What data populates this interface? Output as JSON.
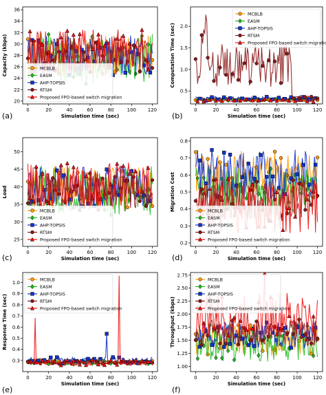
{
  "colors": {
    "MCBLB": "#ff9900",
    "EASM": "#22bb22",
    "AHP-TOPSIS": "#1133cc",
    "RTSM": "#8b1a1a",
    "Proposed": "#ee1111"
  },
  "chart_data": [
    {
      "type": "line",
      "panel_label": "(a)",
      "xlabel": "Simulation time (sec)",
      "ylabel": "Capacity (kbps)",
      "xlim": [
        -5,
        125
      ],
      "ylim": [
        19.5,
        36.5
      ],
      "xticks": [
        0,
        20,
        40,
        60,
        80,
        100,
        120
      ],
      "yticks": [
        20,
        22,
        24,
        26,
        28,
        30,
        32,
        34,
        36
      ],
      "legend_loc": "bottom-left",
      "series": [
        {
          "name": "MCBLB",
          "key": "MCBLB",
          "marker": "circle",
          "base": 28,
          "amp": 3.5,
          "seed": 11
        },
        {
          "name": "EASM",
          "key": "EASM",
          "marker": "diamond",
          "base": 27.5,
          "amp": 4.5,
          "seed": 12
        },
        {
          "name": "AHP-TOPSIS",
          "key": "AHP-TOPSIS",
          "marker": "square",
          "base": 28,
          "amp": 3.5,
          "seed": 13
        },
        {
          "name": "RTSM",
          "key": "RTSM",
          "marker": "circle",
          "base": 28,
          "amp": 3,
          "seed": 14
        },
        {
          "name": "Proposed FPO-based switch migration",
          "key": "Proposed",
          "marker": "triangle",
          "base": 28.5,
          "amp": 4,
          "seed": 15
        }
      ]
    },
    {
      "type": "line",
      "panel_label": "(b)",
      "xlabel": "Simulation time (sec)",
      "ylabel": "Computation Time (sec)",
      "xlim": [
        -5,
        125
      ],
      "ylim": [
        0.2,
        2.45
      ],
      "xticks": [
        0,
        20,
        40,
        60,
        80,
        100,
        120
      ],
      "yticks": [
        0.5,
        1.0,
        1.5,
        2.0
      ],
      "legend_loc": "top-right",
      "series": [
        {
          "name": "MCBLB",
          "key": "MCBLB",
          "marker": "circle",
          "base": 0.3,
          "amp": 0.02,
          "seed": 21
        },
        {
          "name": "EASM",
          "key": "EASM",
          "marker": "diamond",
          "base": 0.3,
          "amp": 0.02,
          "seed": 22
        },
        {
          "name": "AHP-TOPSIS",
          "key": "AHP-TOPSIS",
          "marker": "square",
          "base": 0.32,
          "amp": 0.05,
          "seed": 23
        },
        {
          "name": "RTSM",
          "key": "RTSM",
          "marker": "circle",
          "shape": "rtsm",
          "base": 0.3,
          "amp": 0.02,
          "seed": 24
        },
        {
          "name": "Proposed FPO-based switch migration",
          "key": "Proposed",
          "marker": "triangle",
          "base": 0.28,
          "amp": 0.03,
          "seed": 25
        }
      ]
    },
    {
      "type": "line",
      "panel_label": "(c)",
      "xlabel": "Simulation time (sec)",
      "ylabel": "Load",
      "xlim": [
        -5,
        125
      ],
      "ylim": [
        23,
        54
      ],
      "xticks": [
        0,
        20,
        40,
        60,
        80,
        100,
        120
      ],
      "yticks": [
        25,
        30,
        35,
        40,
        45,
        50
      ],
      "legend_loc": "bottom-left",
      "series": [
        {
          "name": "MCBLB",
          "key": "MCBLB",
          "marker": "circle",
          "base": 40,
          "amp": 6,
          "seed": 31
        },
        {
          "name": "EASM",
          "key": "EASM",
          "marker": "diamond",
          "base": 39,
          "amp": 7,
          "seed": 32
        },
        {
          "name": "AHP-TOPSIS",
          "key": "AHP-TOPSIS",
          "marker": "square",
          "base": 40,
          "amp": 6,
          "seed": 33
        },
        {
          "name": "RTSM",
          "key": "RTSM",
          "marker": "circle",
          "base": 39,
          "amp": 5,
          "seed": 34
        },
        {
          "name": "Proposed FPO-based switch migration",
          "key": "Proposed",
          "marker": "triangle",
          "base": 40,
          "amp": 7,
          "seed": 35
        }
      ]
    },
    {
      "type": "line",
      "panel_label": "(d)",
      "xlabel": "Simulation time (sec)",
      "ylabel": "Migration Cost",
      "xlim": [
        -5,
        125
      ],
      "ylim": [
        0.18,
        0.82
      ],
      "xticks": [
        0,
        20,
        40,
        60,
        80,
        100,
        120
      ],
      "yticks": [
        0.2,
        0.3,
        0.4,
        0.5,
        0.6,
        0.7,
        0.8
      ],
      "legend_loc": "bottom-left",
      "series": [
        {
          "name": "MCBLB",
          "key": "MCBLB",
          "marker": "circle",
          "base": 0.6,
          "amp": 0.14,
          "seed": 41
        },
        {
          "name": "EASM",
          "key": "EASM",
          "marker": "diamond",
          "base": 0.5,
          "amp": 0.15,
          "seed": 42
        },
        {
          "name": "AHP-TOPSIS",
          "key": "AHP-TOPSIS",
          "marker": "square",
          "base": 0.6,
          "amp": 0.15,
          "seed": 43
        },
        {
          "name": "RTSM",
          "key": "RTSM",
          "marker": "circle",
          "base": 0.45,
          "amp": 0.12,
          "seed": 44
        },
        {
          "name": "Proposed FPO-based switch migration",
          "key": "Proposed",
          "marker": "triangle",
          "base": 0.42,
          "amp": 0.16,
          "seed": 45
        }
      ]
    },
    {
      "type": "line",
      "panel_label": "(e)",
      "xlabel": "Simulation time (sec)",
      "ylabel": "Response Time (sec)",
      "xlim": [
        -5,
        125
      ],
      "ylim": [
        0.2,
        1.09
      ],
      "xticks": [
        0,
        20,
        40,
        60,
        80,
        100,
        120
      ],
      "yticks": [
        0.3,
        0.4,
        0.5,
        0.6,
        0.7,
        0.8,
        0.9,
        1.0
      ],
      "legend_loc": "top-left",
      "series": [
        {
          "name": "MCBLB",
          "key": "MCBLB",
          "marker": "circle",
          "base": 0.29,
          "amp": 0.015,
          "seed": 51
        },
        {
          "name": "EASM",
          "key": "EASM",
          "marker": "diamond",
          "base": 0.28,
          "amp": 0.02,
          "seed": 52
        },
        {
          "name": "AHP-TOPSIS",
          "key": "AHP-TOPSIS",
          "marker": "square",
          "base": 0.3,
          "amp": 0.03,
          "seed": 53
        },
        {
          "name": "RTSM",
          "key": "RTSM",
          "marker": "circle",
          "base": 0.28,
          "amp": 0.015,
          "seed": 54
        },
        {
          "name": "Proposed FPO-based switch migration",
          "key": "Proposed",
          "marker": "triangle",
          "base": 0.28,
          "amp": 0.025,
          "seed": 55
        }
      ]
    },
    {
      "type": "line",
      "panel_label": "(f)",
      "xlabel": "Simulation time (sec)",
      "ylabel": "Throughput (kbps)",
      "xlim": [
        -5,
        125
      ],
      "ylim": [
        0.9,
        2.8
      ],
      "xticks": [
        0,
        20,
        40,
        60,
        80,
        100,
        120
      ],
      "yticks": [
        1.0,
        1.25,
        1.5,
        1.75,
        2.0,
        2.25,
        2.5,
        2.75
      ],
      "legend_loc": "top-left",
      "series": [
        {
          "name": "MCBLB",
          "key": "MCBLB",
          "marker": "circle",
          "base": 1.5,
          "amp": 0.3,
          "seed": 61
        },
        {
          "name": "EASM",
          "key": "EASM",
          "marker": "diamond",
          "base": 1.45,
          "amp": 0.35,
          "seed": 62
        },
        {
          "name": "AHP-TOPSIS",
          "key": "AHP-TOPSIS",
          "marker": "square",
          "base": 1.6,
          "amp": 0.25,
          "seed": 63
        },
        {
          "name": "RTSM",
          "key": "RTSM",
          "marker": "circle",
          "base": 1.65,
          "amp": 0.25,
          "seed": 64
        },
        {
          "name": "Proposed FPO-based switch migration",
          "key": "Proposed",
          "marker": "triangle",
          "base": 1.95,
          "amp": 0.45,
          "seed": 65
        }
      ]
    }
  ]
}
